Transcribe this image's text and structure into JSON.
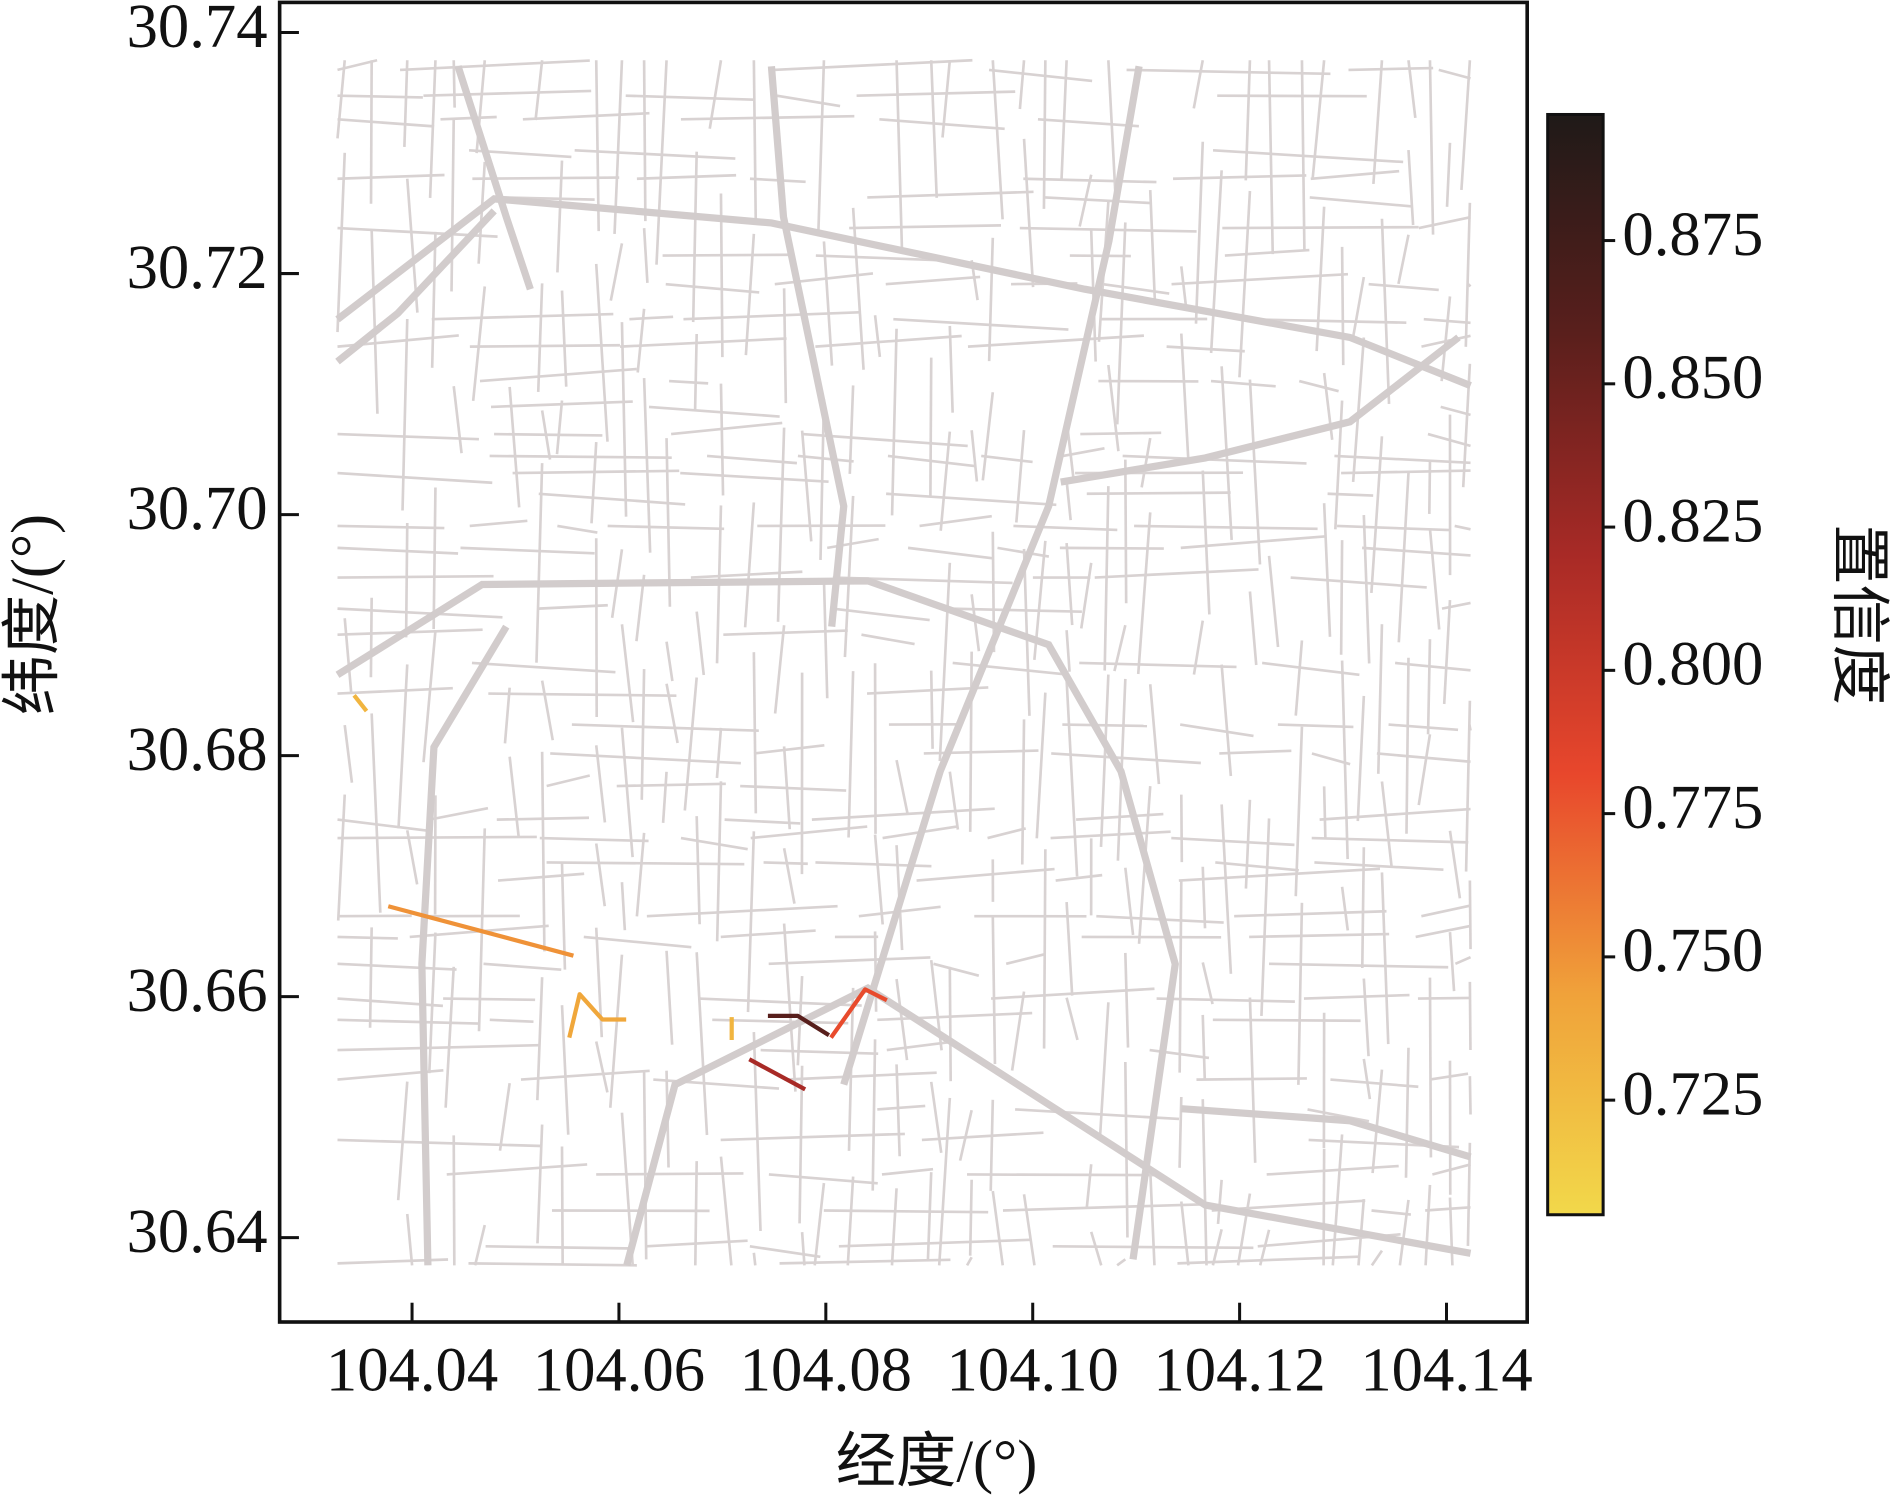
{
  "chart_data": {
    "type": "map",
    "xlabel": "经度/(°)",
    "ylabel": "纬度/(°)",
    "xlim": [
      104.0272,
      104.1478
    ],
    "ylim": [
      30.633,
      30.7425
    ],
    "xticks": [
      104.04,
      104.06,
      104.08,
      {
        "value": 104.1,
        "label": "104.10"
      },
      104.12,
      104.14
    ],
    "yticks": [
      30.64,
      30.66,
      30.68,
      {
        "value": 30.7,
        "label": "30.70"
      },
      30.72,
      30.74
    ],
    "road_color": "#d8d2d2",
    "colorbar": {
      "label": "置信度",
      "lim": [
        0.705,
        0.897
      ],
      "ticks": [
        0.725,
        {
          "value": 0.75,
          "label": "0.750"
        },
        0.775,
        {
          "value": 0.8,
          "label": "0.800"
        },
        0.825,
        {
          "value": 0.85,
          "label": "0.850"
        },
        0.875
      ],
      "colors": [
        "#f2d84a",
        "#f0a23a",
        "#e8472c",
        "#a82a26",
        "#5a1f1c",
        "#1f1a18"
      ]
    },
    "segments": [
      {
        "lon": [
          104.0344,
          104.0356
        ],
        "lat": [
          30.685,
          30.6837
        ],
        "value": 0.73
      },
      {
        "lon": [
          104.0377,
          104.0556
        ],
        "lat": [
          30.6675,
          30.6634
        ],
        "value": 0.75
      },
      {
        "lon": [
          104.0552,
          104.0562,
          104.0584,
          104.0607
        ],
        "lat": [
          30.6566,
          30.6602,
          30.6581,
          30.6581
        ],
        "value": 0.74
      },
      {
        "lon": [
          104.0709,
          104.0709
        ],
        "lat": [
          30.6583,
          30.6564
        ],
        "value": 0.73
      },
      {
        "lon": [
          104.0744,
          104.0773,
          104.0803
        ],
        "lat": [
          30.6584,
          30.6584,
          30.6568
        ],
        "value": 0.86
      },
      {
        "lon": [
          104.0805,
          104.0838,
          104.0859
        ],
        "lat": [
          30.6566,
          30.6606,
          30.6597
        ],
        "value": 0.78
      },
      {
        "lon": [
          104.0726,
          104.078
        ],
        "lat": [
          30.6548,
          30.6523
        ],
        "value": 0.82
      }
    ]
  }
}
